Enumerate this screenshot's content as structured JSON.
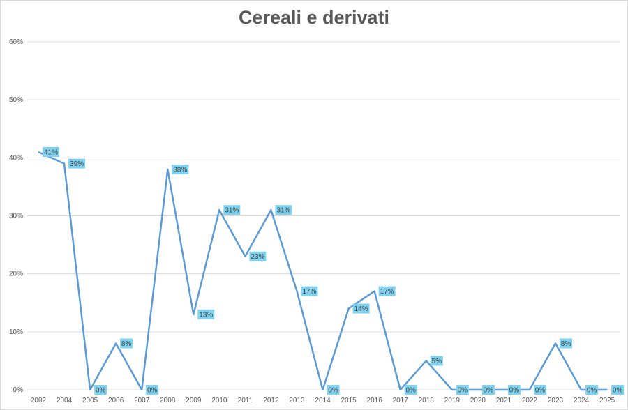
{
  "chart_data": {
    "type": "line",
    "title": "Cereali e derivati",
    "xlabel": "",
    "ylabel": "",
    "ylim": [
      0,
      60
    ],
    "yticks": [
      "0%",
      "10%",
      "20%",
      "30%",
      "40%",
      "50%",
      "60%"
    ],
    "grid": true,
    "legend": "none",
    "colors": {
      "series": "#5b9bd5",
      "label_box": "#7fd3f0"
    },
    "categories": [
      "2002",
      "2004",
      "2005",
      "2006",
      "2007",
      "2008",
      "2009",
      "2010",
      "2011",
      "2012",
      "2013",
      "2014",
      "2015",
      "2016",
      "2017",
      "2018",
      "2019",
      "2020",
      "2021",
      "2022",
      "2023",
      "2024",
      "2025"
    ],
    "series": [
      {
        "values": [
          41,
          39,
          0,
          8,
          0,
          38,
          13,
          31,
          23,
          31,
          17,
          0,
          14,
          17,
          0,
          5,
          0,
          0,
          0,
          0,
          8,
          0,
          0
        ],
        "data_labels": [
          "41%",
          "39%",
          "0%",
          "8%",
          "0%",
          "38%",
          "13%",
          "31%",
          "23%",
          "31%",
          "17%",
          "0%",
          "14%",
          "17%",
          "0%",
          "5%",
          "0%",
          "0%",
          "0%",
          "0%",
          "8%",
          "0%",
          "0%"
        ]
      }
    ]
  }
}
